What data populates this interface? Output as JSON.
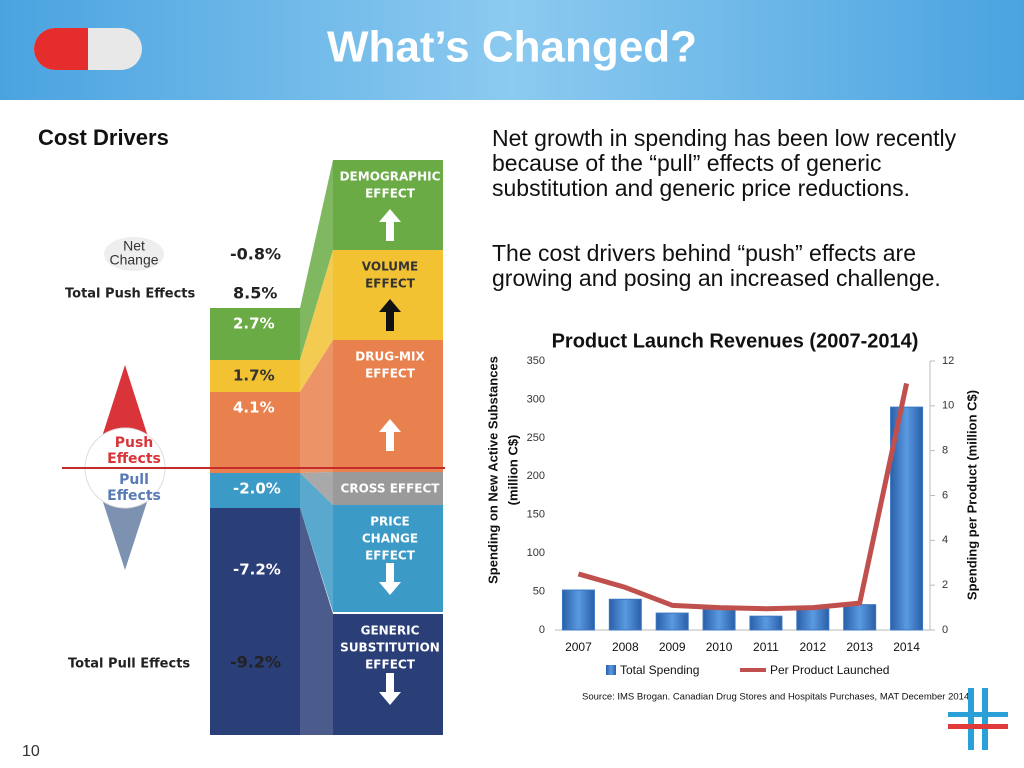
{
  "header": {
    "title": "What’s Changed?"
  },
  "left_heading": "Cost Drivers",
  "infographic": {
    "net_change_label": [
      "Net",
      "Change"
    ],
    "net_change_value": "-0.8%",
    "push_total_label": "Total Push Effects",
    "push_total_value": "8.5%",
    "pull_total_label": "Total Pull Effects",
    "pull_total_value": "-9.2%",
    "push_label": [
      "Push",
      "Effects"
    ],
    "pull_label": [
      "Pull",
      "Effects"
    ],
    "segments": [
      "2.7%",
      "1.7%",
      "4.1%",
      "-2.0%",
      "-7.2%"
    ],
    "effects": [
      [
        "DEMOGRAPHIC",
        "EFFECT"
      ],
      [
        "VOLUME",
        "EFFECT"
      ],
      [
        "DRUG-MIX",
        "EFFECT"
      ],
      [
        "CROSS EFFECT"
      ],
      [
        "PRICE",
        "CHANGE",
        "EFFECT"
      ],
      [
        "GENERIC",
        "SUBSTITUTION",
        "EFFECT"
      ]
    ]
  },
  "paragraphs": [
    [
      "Net growth in spending has been low recently",
      "because of the “pull” effects of generic",
      "substitution and generic price reductions."
    ],
    [
      "The cost drivers behind “push” effects are",
      "growing and posing an increased challenge."
    ]
  ],
  "chart_data": {
    "type": "bar",
    "title": "Product Launch Revenues (2007-2014)",
    "ylabel": [
      "Spending on New Active Substances",
      "(million C$)"
    ],
    "y2label": "Spending per Product (million C$)",
    "categories": [
      "2007",
      "2008",
      "2009",
      "2010",
      "2011",
      "2012",
      "2013",
      "2014"
    ],
    "series": [
      {
        "name": "Total Spending",
        "type": "bar",
        "color": "#3b78c4",
        "values": [
          52,
          40,
          22,
          27,
          18,
          28,
          33,
          290
        ]
      },
      {
        "name": "Per Product Launched",
        "type": "line",
        "axis": "y2",
        "color": "#c0504d",
        "values": [
          2.5,
          1.9,
          1.1,
          1.0,
          0.95,
          1.0,
          1.2,
          11.0
        ]
      }
    ],
    "ylim": [
      0,
      350
    ],
    "yticks": [
      0,
      50,
      100,
      150,
      200,
      250,
      300,
      350
    ],
    "y2lim": [
      0,
      12
    ],
    "y2ticks": [
      0,
      2,
      4,
      6,
      8,
      10,
      12
    ],
    "legend": "bottom",
    "grid": false,
    "source": "Source: IMS Brogan. Canadian Drug Stores and Hospitals Purchases, MAT December 2014"
  },
  "slide_number": "10"
}
